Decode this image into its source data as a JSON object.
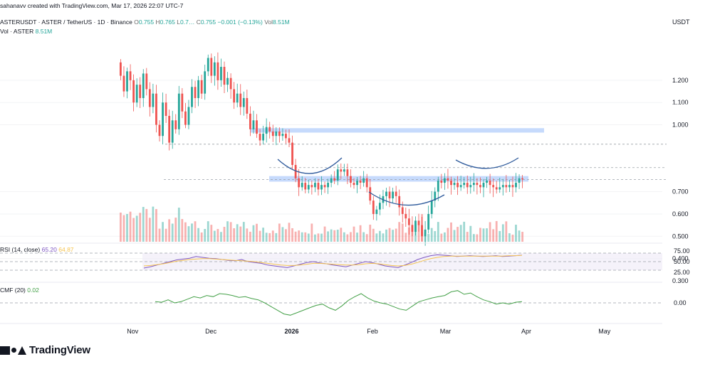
{
  "header": {
    "credit": "sahanavv created with TradingView.com, Mar 17, 2026 22:07 UTC-7",
    "symbol": "ASTERUSDT · ASTER / TetherUS · 1D · Binance",
    "o_label": "O",
    "o_value": "0.755",
    "h_label": "H",
    "h_value": "0.765",
    "l_label": "L",
    "l_value": "0.7…",
    "c_label": "C",
    "c_value": "0.755",
    "change": "−0.001 (−0.13%)",
    "vol_label": "Vol",
    "vol_value": "8.51M",
    "vol_line_label": "Vol · ASTER",
    "vol_line_value": "8.51M"
  },
  "price_axis": {
    "unit": "USDT",
    "ticks": [
      "1.200",
      "1.100",
      "1.000",
      "0.700",
      "0.600",
      "0.500",
      "0.400",
      "0.300"
    ]
  },
  "price_tags": [
    {
      "value": "0.913",
      "color": "#2962ff"
    },
    {
      "value": "0.808",
      "color": "#2962ff"
    },
    {
      "value": "0.755",
      "color": "#26a69a"
    }
  ],
  "rsi": {
    "label": "RSI (14, close)",
    "value": "65.20",
    "ma_value": "64.87",
    "ticks": [
      "75.00",
      "50.00",
      "25.00"
    ],
    "line_color": "#7e57c2",
    "ma_color": "#f5c451"
  },
  "cmf": {
    "label": "CMF (20)",
    "value": "0.02",
    "ticks": [
      "0.00"
    ],
    "line_color": "#43a047"
  },
  "time_axis": [
    "Nov",
    "Dec",
    "2026",
    "Feb",
    "Mar",
    "Apr",
    "May"
  ],
  "brand": "TradingView",
  "colors": {
    "up": "#26a69a",
    "down": "#ef5350",
    "zone": "#bcd3fb",
    "pattern": "#2f5b9c"
  },
  "chart_data": [
    {
      "type": "candlestick",
      "title": "ASTERUSDT · ASTER / TetherUS · 1D · Binance",
      "ylabel": "USDT",
      "ylim": [
        0.29,
        1.34
      ],
      "x_range": [
        "2025-10-24",
        "2026-05-15"
      ],
      "closes": [
        1.22,
        1.15,
        1.24,
        1.2,
        1.1,
        1.18,
        1.12,
        1.23,
        1.16,
        1.08,
        1.14,
        1.0,
        0.95,
        1.1,
        1.04,
        0.92,
        1.02,
        0.98,
        1.14,
        1.06,
        1.0,
        1.08,
        1.17,
        1.12,
        1.2,
        1.14,
        1.24,
        1.3,
        1.22,
        1.28,
        1.2,
        1.26,
        1.18,
        1.21,
        1.16,
        1.1,
        1.14,
        1.08,
        1.12,
        1.05,
        0.98,
        1.02,
        0.96,
        0.93,
        0.96,
        0.99,
        0.97,
        0.95,
        0.97,
        0.95,
        0.96,
        0.94,
        0.92,
        0.82,
        0.76,
        0.72,
        0.74,
        0.71,
        0.73,
        0.72,
        0.74,
        0.71,
        0.73,
        0.72,
        0.74,
        0.76,
        0.75,
        0.8,
        0.79,
        0.8,
        0.77,
        0.74,
        0.73,
        0.75,
        0.74,
        0.76,
        0.72,
        0.66,
        0.6,
        0.62,
        0.65,
        0.68,
        0.7,
        0.67,
        0.7,
        0.68,
        0.63,
        0.6,
        0.58,
        0.55,
        0.52,
        0.57,
        0.55,
        0.5,
        0.53,
        0.6,
        0.66,
        0.7,
        0.75,
        0.74,
        0.76,
        0.75,
        0.73,
        0.74,
        0.72,
        0.73,
        0.74,
        0.72,
        0.73,
        0.74,
        0.73,
        0.72,
        0.74,
        0.75,
        0.73,
        0.72,
        0.71,
        0.72,
        0.73,
        0.72,
        0.73,
        0.72,
        0.74,
        0.76,
        0.755
      ],
      "volume_unit": "M ASTER",
      "volume_last": 8.51,
      "horizontal_levels": [
        0.913,
        0.808,
        0.755
      ],
      "resistance_zones": [
        [
          0.965,
          0.985
        ],
        [
          0.745,
          0.77
        ]
      ],
      "pattern": "inverse head and shoulders"
    },
    {
      "type": "line",
      "title": "RSI (14, close)",
      "ylim": [
        10,
        90
      ],
      "levels": [
        70,
        50,
        30
      ],
      "series": [
        {
          "name": "RSI (14, close)",
          "values": [
            35,
            38,
            42,
            46,
            50,
            54,
            56,
            58,
            62,
            60,
            58,
            57,
            55,
            53,
            52,
            55,
            50,
            48,
            46,
            42,
            40,
            38,
            36,
            40,
            44,
            48,
            50,
            47,
            45,
            42,
            40,
            38,
            42,
            46,
            50,
            48,
            44,
            40,
            38,
            36,
            42,
            48,
            55,
            60,
            64,
            66,
            65,
            64,
            62,
            63,
            64,
            63,
            62,
            63,
            64,
            62,
            63,
            64,
            65.2
          ]
        },
        {
          "name": "MA",
          "values": [
            40,
            41,
            43,
            45,
            48,
            51,
            53,
            55,
            56,
            57,
            57,
            56,
            55,
            54,
            53,
            52,
            51,
            50,
            48,
            46,
            44,
            42,
            41,
            41,
            42,
            44,
            46,
            46,
            45,
            44,
            43,
            42,
            42,
            43,
            45,
            46,
            45,
            43,
            41,
            40,
            41,
            44,
            48,
            53,
            57,
            60,
            62,
            63,
            63,
            63,
            63,
            63,
            63,
            63,
            63,
            63,
            64,
            64,
            64.87
          ]
        }
      ]
    },
    {
      "type": "line",
      "title": "CMF (20)",
      "ylim": [
        -0.3,
        0.3
      ],
      "levels": [
        0
      ],
      "series": [
        {
          "name": "CMF (20)",
          "values": [
            0.02,
            0.01,
            0.05,
            0.0,
            0.02,
            0.06,
            0.1,
            0.08,
            0.12,
            0.1,
            0.15,
            0.14,
            0.12,
            0.09,
            0.1,
            0.07,
            0.05,
            0.0,
            -0.06,
            -0.12,
            -0.18,
            -0.2,
            -0.16,
            -0.12,
            -0.08,
            -0.04,
            -0.02,
            -0.08,
            -0.12,
            -0.05,
            0.04,
            0.1,
            0.15,
            0.08,
            0.03,
            0.0,
            -0.02,
            -0.06,
            -0.1,
            -0.12,
            -0.05,
            0.02,
            0.05,
            0.08,
            0.1,
            0.12,
            0.18,
            0.2,
            0.14,
            0.16,
            0.1,
            0.05,
            0.02,
            -0.02,
            0.0,
            -0.02,
            0.01,
            0.02
          ]
        }
      ]
    }
  ]
}
